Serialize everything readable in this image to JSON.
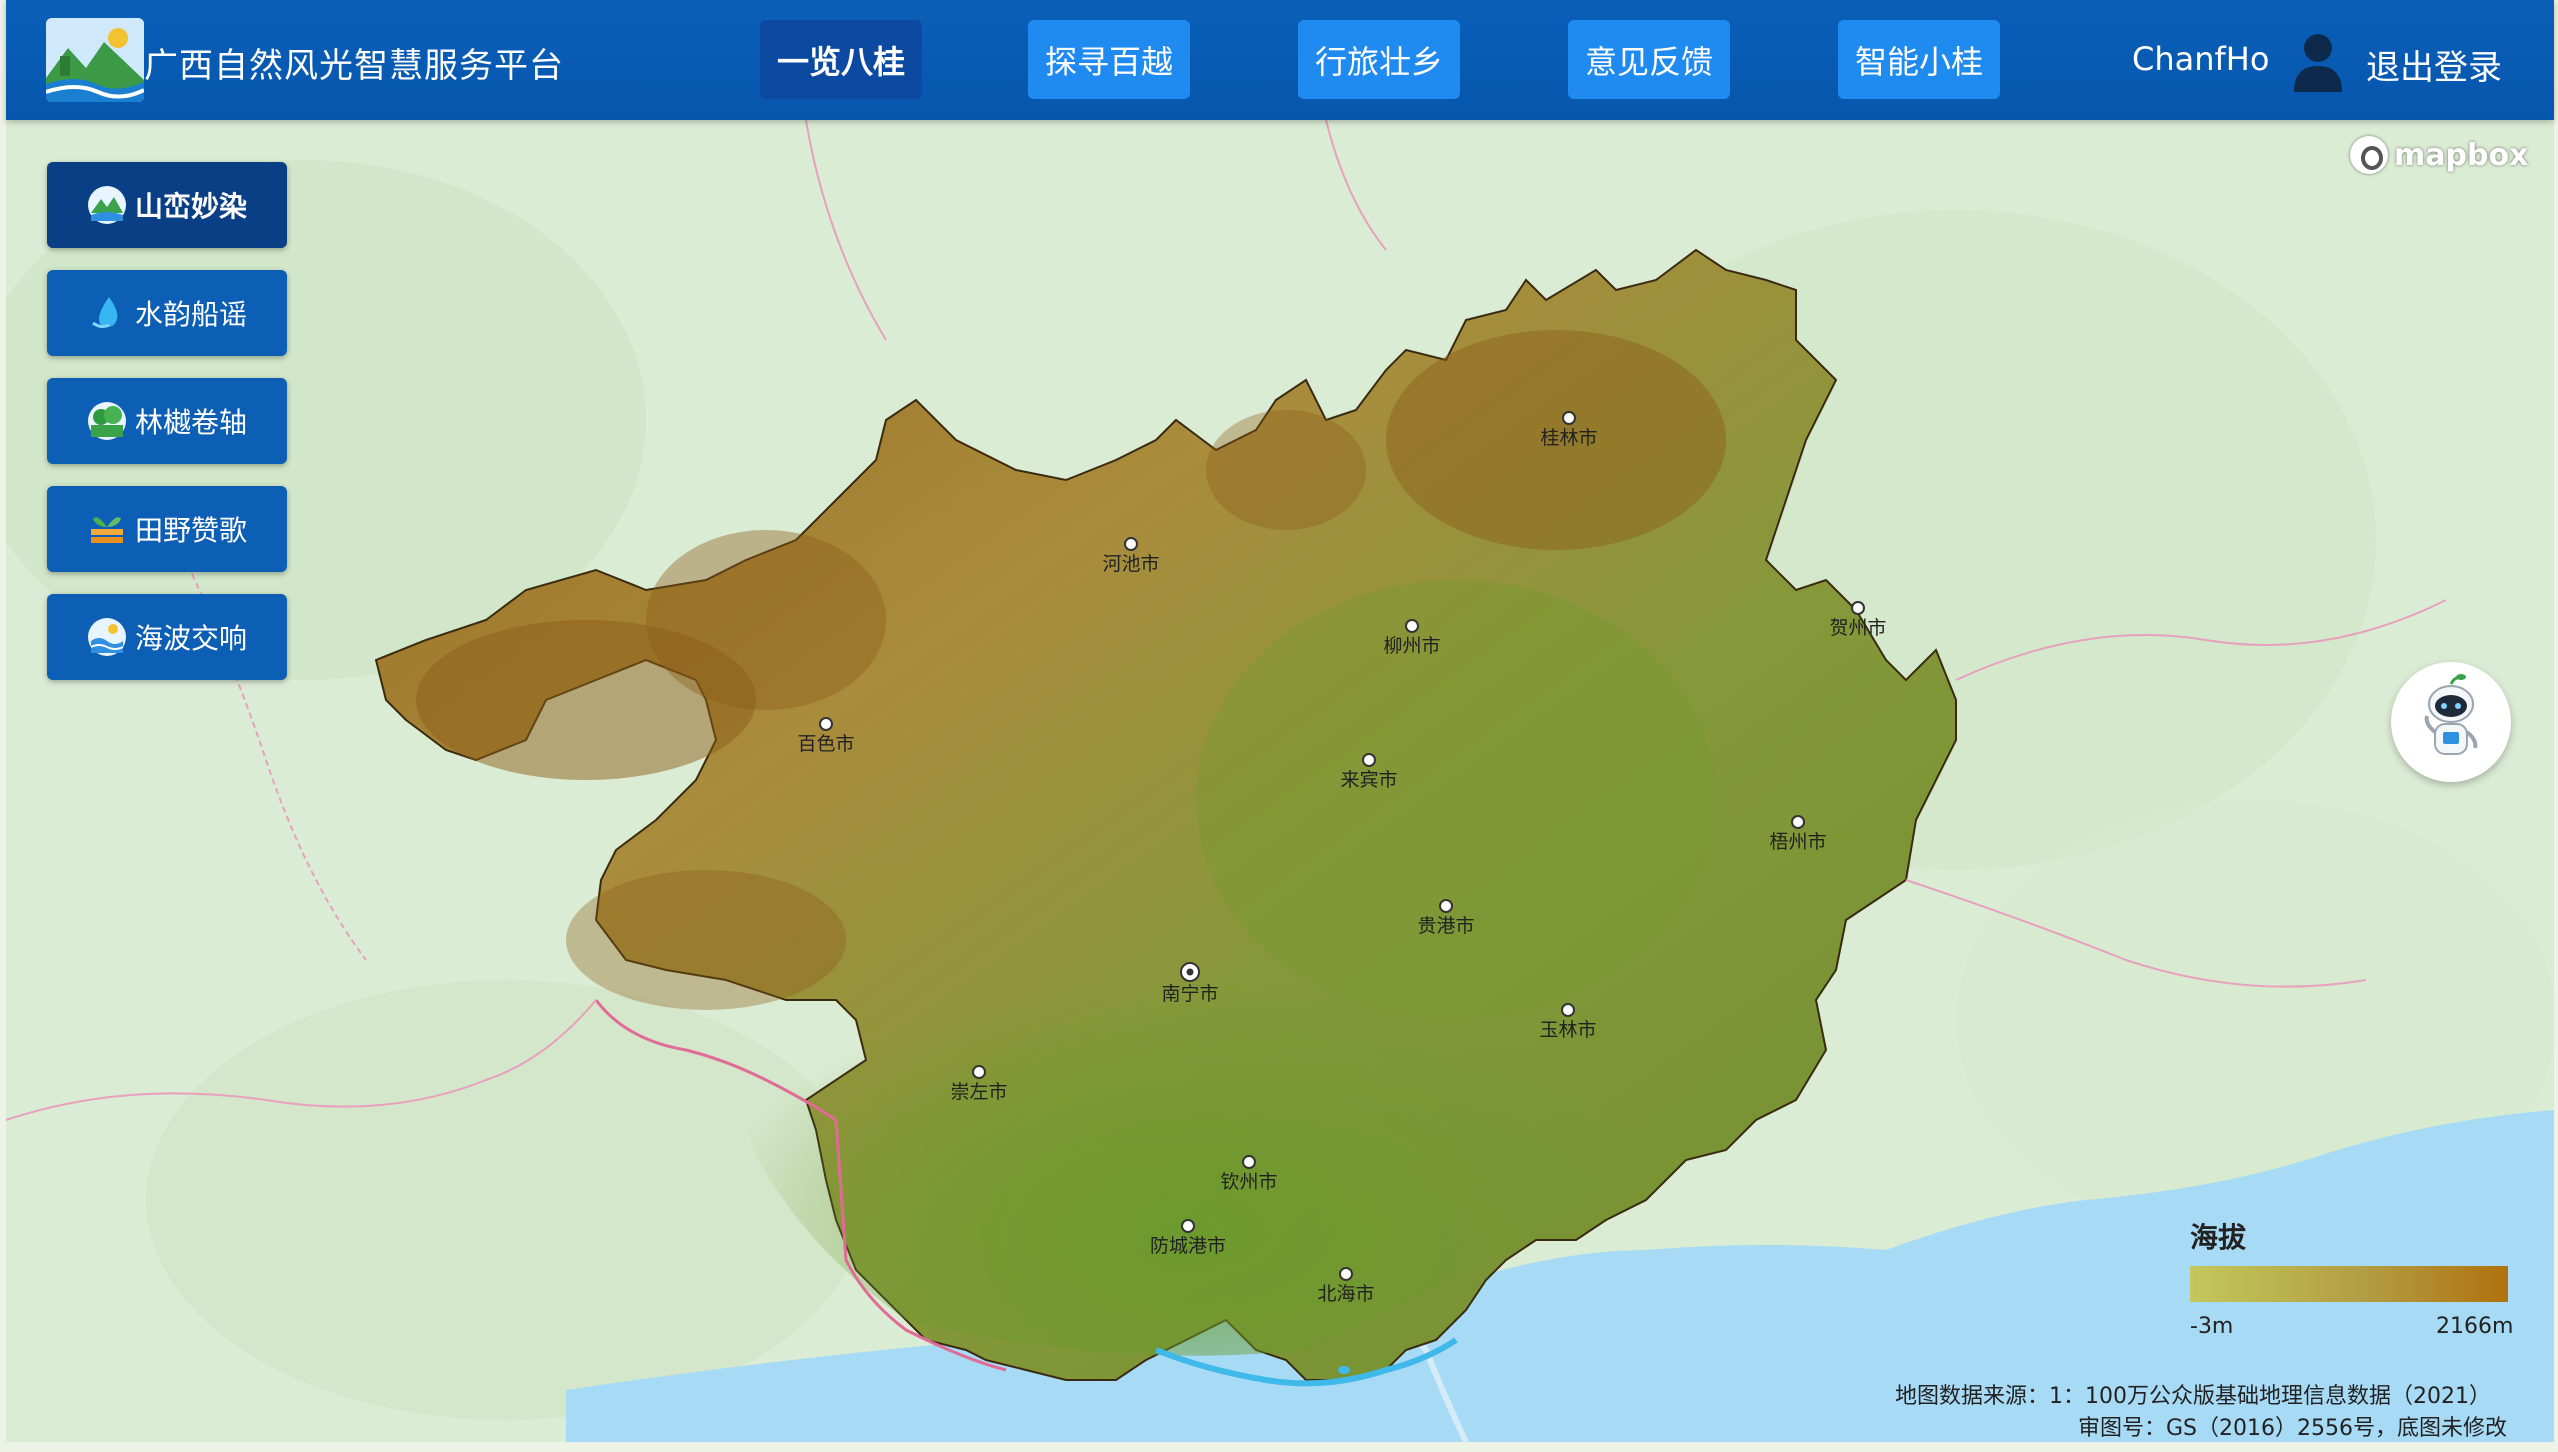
{
  "header": {
    "title": "广西自然风光智慧服务平台",
    "nav": [
      {
        "label": "一览八桂",
        "active": true
      },
      {
        "label": "探寻百越",
        "active": false
      },
      {
        "label": "行旅壮乡",
        "active": false
      },
      {
        "label": "意见反馈",
        "active": false
      },
      {
        "label": "智能小桂",
        "active": false
      }
    ],
    "username": "ChanfHo",
    "logout_label": "退出登录"
  },
  "sidebar": {
    "items": [
      {
        "label": "山峦妙染",
        "icon": "mountain-icon",
        "active": true
      },
      {
        "label": "水韵船谣",
        "icon": "water-drop-icon",
        "active": false
      },
      {
        "label": "林樾卷轴",
        "icon": "forest-icon",
        "active": false
      },
      {
        "label": "田野赞歌",
        "icon": "farmland-icon",
        "active": false
      },
      {
        "label": "海波交响",
        "icon": "ocean-icon",
        "active": false
      }
    ]
  },
  "map": {
    "attribution": "mapbox",
    "cities": [
      {
        "name": "桂林市"
      },
      {
        "name": "河池市"
      },
      {
        "name": "柳州市"
      },
      {
        "name": "贺州市"
      },
      {
        "name": "百色市"
      },
      {
        "name": "来宾市"
      },
      {
        "name": "梧州市"
      },
      {
        "name": "贵港市"
      },
      {
        "name": "南宁市",
        "capital": true
      },
      {
        "name": "玉林市"
      },
      {
        "name": "崇左市"
      },
      {
        "name": "钦州市"
      },
      {
        "name": "防城港市"
      },
      {
        "name": "北海市"
      }
    ],
    "legend": {
      "title": "海拔",
      "min": "-3m",
      "max": "2166m",
      "color_low": "#c3c85b",
      "color_high": "#b0720e"
    },
    "source_line1": "地图数据来源：1：100万公众版基础地理信息数据（2021）",
    "source_line2": "审图号：GS（2016）2556号，底图未修改"
  },
  "colors": {
    "header_bg": "#0756ad",
    "nav_button": "#1f8af0",
    "nav_active": "#0b4aa0",
    "sidebar_button": "#0d5fb5",
    "sidebar_active": "#0a3f86",
    "sea": "#a7daf5",
    "land": "#dfeed8"
  }
}
